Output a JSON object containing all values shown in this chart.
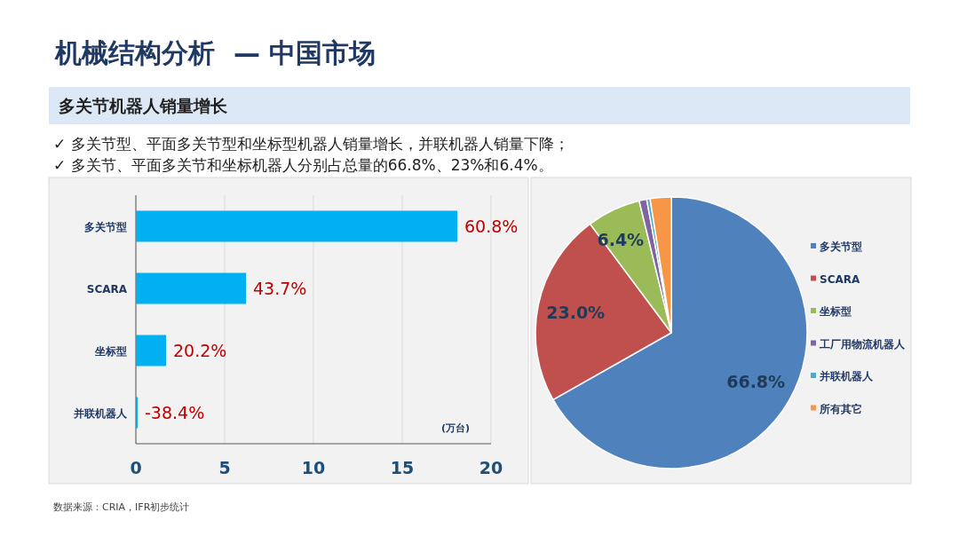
{
  "chart_data": [
    {
      "type": "bar",
      "orientation": "horizontal",
      "title": "机械结构分析  — 中国市场",
      "subtitle": "多关节机器人销量增长",
      "annotations": [
        "✓  多关节型、平面多关节型和坐标型机器人销量增长，并联机器人销量下降；",
        "✓  多关节、平面多关节和坐标机器人分别占总量的66.8%、23%和6.4%。",
        {
          "text": "60.8%",
          "x": 18.1,
          "y": "多关节型"
        },
        {
          "text": "43.7%",
          "x": 6.2,
          "y": "SCARA"
        },
        {
          "text": "20.2%",
          "x": 1.7,
          "y": "坐标型"
        },
        {
          "text": "-38.4%",
          "x": 0.1,
          "y": "并联机器人"
        },
        "数据来源：CRIA，IFR初步统计"
      ],
      "categories": [
        "多关节型",
        "SCARA",
        "坐标型",
        "并联机器人"
      ],
      "values": [
        18.1,
        6.2,
        1.7,
        0.1
      ],
      "color": "#00b0f0",
      "xlabel": "(万台)",
      "xlim": [
        0,
        20
      ],
      "xticks": [
        0,
        5,
        10,
        15,
        20
      ],
      "grid": "x"
    },
    {
      "type": "pie",
      "categories": [
        "多关节型",
        "SCARA",
        "坐标型",
        "工厂用物流机器人",
        "并联机器人",
        "所有其它"
      ],
      "values": [
        66.8,
        23.0,
        6.4,
        0.9,
        0.4,
        2.5
      ],
      "colors": [
        "#4f81bd",
        "#c0504d",
        "#9bbb59",
        "#8064a2",
        "#4bacc6",
        "#f79646"
      ],
      "value_labels": [
        "66.8%",
        "23.0%",
        "6.4%",
        null,
        null,
        null
      ],
      "legend": "right"
    }
  ]
}
